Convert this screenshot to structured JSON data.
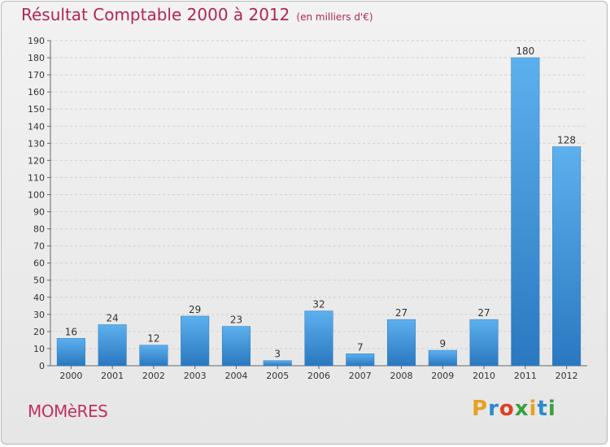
{
  "header": {
    "title": "Résultat Comptable 2000 à 2012",
    "subtitle": "(en milliers d'€)"
  },
  "footer": {
    "commune": "MOMèRES",
    "logo": [
      "P",
      "r",
      "o",
      "x",
      "i",
      "t",
      "i"
    ]
  },
  "colors": {
    "bar": "#4a9fe0",
    "bar_dark": "#2a78c0",
    "title": "#b3245a"
  },
  "chart_data": {
    "type": "bar",
    "categories": [
      "2000",
      "2001",
      "2002",
      "2003",
      "2004",
      "2005",
      "2006",
      "2007",
      "2008",
      "2009",
      "2010",
      "2011",
      "2012"
    ],
    "values": [
      16,
      24,
      12,
      29,
      23,
      3,
      32,
      7,
      27,
      9,
      27,
      180,
      128
    ],
    "title": "Résultat Comptable 2000 à 2012",
    "subtitle": "(en milliers d'€)",
    "ylim": [
      0,
      190
    ],
    "yticks": [
      0,
      10,
      20,
      30,
      40,
      50,
      60,
      70,
      80,
      90,
      100,
      110,
      120,
      130,
      140,
      150,
      160,
      170,
      180,
      190
    ],
    "grid": true
  }
}
